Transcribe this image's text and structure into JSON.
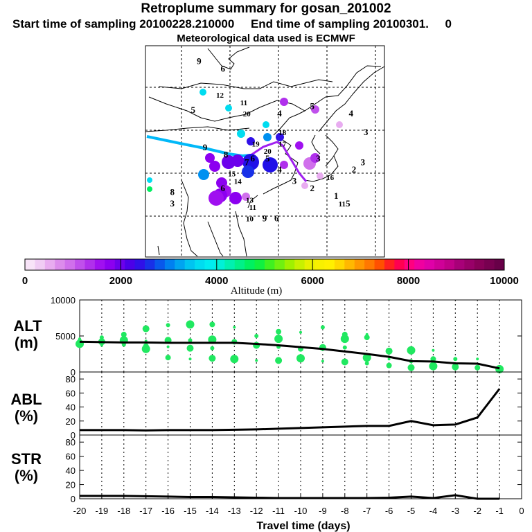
{
  "header": {
    "title": "Retroplume summary for gosan_201002",
    "sampling": "Start time of sampling 20100228.210000     End time of sampling 20100301.     0",
    "met": "Meteorological data used is ECMWF"
  },
  "colorbar": {
    "label": "Altitude (m)",
    "ticks": [
      "0",
      "2000",
      "4000",
      "6000",
      "8000",
      "10000"
    ],
    "min": 0,
    "max": 10000,
    "colors": [
      "#f8e4f8",
      "#f0ccf4",
      "#e8acf0",
      "#dc8cec",
      "#d070ec",
      "#c050ec",
      "#b030ec",
      "#a010f0",
      "#8c00f0",
      "#6c00ec",
      "#4c00e8",
      "#3010e8",
      "#1830e8",
      "#0858ec",
      "#0080f0",
      "#00a4f0",
      "#00c4f0",
      "#00dcf0",
      "#00ecf0",
      "#00f0d8",
      "#00f0b0",
      "#00f088",
      "#00f060",
      "#10f040",
      "#40f020",
      "#70f010",
      "#a0f000",
      "#c8f000",
      "#e8f000",
      "#f8f000",
      "#fff000",
      "#ffd800",
      "#ffb800",
      "#ff9800",
      "#ff7800",
      "#ff5000",
      "#ff2020",
      "#ff0050",
      "#ff0080",
      "#f000a0",
      "#e000a8",
      "#d00098",
      "#c00088",
      "#a80078",
      "#980068",
      "#880058",
      "#780050",
      "#680048"
    ]
  },
  "map": {
    "labels": [
      {
        "text": "9",
        "lon": 80,
        "lat": 45
      },
      {
        "text": "8",
        "lon": 87,
        "lat": 43
      },
      {
        "text": "7",
        "lon": 94,
        "lat": 41
      },
      {
        "text": "6",
        "lon": 96,
        "lat": 42
      },
      {
        "text": "5",
        "lon": 101,
        "lat": 42
      },
      {
        "text": "4",
        "lon": 105,
        "lat": 39
      },
      {
        "text": "3",
        "lon": 110,
        "lat": 36
      },
      {
        "text": "2",
        "lon": 116,
        "lat": 34
      },
      {
        "text": "1",
        "lon": 124,
        "lat": 32
      },
      {
        "text": "3",
        "lon": 118,
        "lat": 42
      },
      {
        "text": "16",
        "lon": 122,
        "lat": 37
      },
      {
        "text": "11",
        "lon": 126,
        "lat": 30
      },
      {
        "text": "5",
        "lon": 128,
        "lat": 30
      },
      {
        "text": "2",
        "lon": 130,
        "lat": 39
      },
      {
        "text": "3",
        "lon": 133,
        "lat": 41
      },
      {
        "text": "3",
        "lon": 134,
        "lat": 49
      },
      {
        "text": "4",
        "lon": 129,
        "lat": 54
      },
      {
        "text": "5",
        "lon": 116,
        "lat": 56
      },
      {
        "text": "4",
        "lon": 105,
        "lat": 54
      },
      {
        "text": "20",
        "lon": 94,
        "lat": 54
      },
      {
        "text": "11",
        "lon": 93,
        "lat": 57
      },
      {
        "text": "12",
        "lon": 85,
        "lat": 59
      },
      {
        "text": "5",
        "lon": 76,
        "lat": 55
      },
      {
        "text": "6",
        "lon": 86,
        "lat": 66
      },
      {
        "text": "9",
        "lon": 78,
        "lat": 68
      },
      {
        "text": "18",
        "lon": 106,
        "lat": 49
      },
      {
        "text": "19",
        "lon": 97,
        "lat": 46
      },
      {
        "text": "17",
        "lon": 106,
        "lat": 46
      },
      {
        "text": "20",
        "lon": 101,
        "lat": 44
      },
      {
        "text": "15",
        "lon": 89,
        "lat": 38
      },
      {
        "text": "14",
        "lon": 91,
        "lat": 36
      },
      {
        "text": "6",
        "lon": 86,
        "lat": 34
      },
      {
        "text": "13",
        "lon": 95,
        "lat": 31
      },
      {
        "text": "11",
        "lon": 96,
        "lat": 29
      },
      {
        "text": "10",
        "lon": 95,
        "lat": 26
      },
      {
        "text": "9",
        "lon": 100,
        "lat": 26
      },
      {
        "text": "6",
        "lon": 104,
        "lat": 26
      },
      {
        "text": "8",
        "lon": 69,
        "lat": 33
      },
      {
        "text": "3",
        "lon": 69,
        "lat": 30
      }
    ]
  },
  "chart_data": [
    {
      "type": "scatter",
      "panel": "ALT",
      "ylabel": "ALT (m)",
      "xlim": [
        -20,
        0
      ],
      "ylim": [
        0,
        10000
      ],
      "yticks": [
        "10000",
        "5000",
        "0"
      ],
      "line": {
        "x": [
          -20,
          -19,
          -18,
          -17,
          -16,
          -15,
          -14,
          -13,
          -12,
          -11,
          -10,
          -9,
          -8,
          -7,
          -6,
          -5,
          -4,
          -3,
          -2,
          -1
        ],
        "y": [
          4200,
          4150,
          4100,
          4100,
          4050,
          4050,
          4050,
          4050,
          3900,
          3700,
          3450,
          3200,
          2850,
          2500,
          2100,
          1500,
          1450,
          1200,
          1150,
          500
        ]
      },
      "points": [
        [
          -20,
          4600
        ],
        [
          -20,
          4200
        ],
        [
          -20,
          3900
        ],
        [
          -19,
          4800
        ],
        [
          -19,
          4200
        ],
        [
          -19,
          3700
        ],
        [
          -18,
          5200
        ],
        [
          -18,
          4400
        ],
        [
          -18,
          3800
        ],
        [
          -17,
          6000
        ],
        [
          -17,
          4300
        ],
        [
          -17,
          3600
        ],
        [
          -17,
          3200
        ],
        [
          -16,
          6500
        ],
        [
          -16,
          4400
        ],
        [
          -16,
          3500
        ],
        [
          -16,
          2000
        ],
        [
          -15,
          6600
        ],
        [
          -15,
          4400
        ],
        [
          -15,
          3300
        ],
        [
          -15,
          1800
        ],
        [
          -14,
          6600
        ],
        [
          -14,
          4500
        ],
        [
          -14,
          3300
        ],
        [
          -14,
          1900
        ],
        [
          -13,
          6200
        ],
        [
          -13,
          4200
        ],
        [
          -13,
          1800
        ],
        [
          -12,
          5000
        ],
        [
          -12,
          3700
        ],
        [
          -12,
          1600
        ],
        [
          -11,
          5600
        ],
        [
          -11,
          4600
        ],
        [
          -11,
          3500
        ],
        [
          -11,
          1600
        ],
        [
          -10,
          5500
        ],
        [
          -10,
          3200
        ],
        [
          -10,
          1900
        ],
        [
          -9,
          6200
        ],
        [
          -9,
          3400
        ],
        [
          -9,
          1500
        ],
        [
          -8,
          5200
        ],
        [
          -8,
          4600
        ],
        [
          -8,
          3400
        ],
        [
          -8,
          1400
        ],
        [
          -7,
          5200
        ],
        [
          -7,
          4800
        ],
        [
          -7,
          2000
        ],
        [
          -7,
          1200
        ],
        [
          -6,
          2900
        ],
        [
          -6,
          1800
        ],
        [
          -6,
          900
        ],
        [
          -5,
          3000
        ],
        [
          -5,
          1500
        ],
        [
          -5,
          600
        ],
        [
          -4,
          3000
        ],
        [
          -4,
          1800
        ],
        [
          -4,
          800
        ],
        [
          -3,
          1800
        ],
        [
          -3,
          700
        ],
        [
          -2,
          1800
        ],
        [
          -2,
          600
        ],
        [
          -1,
          400
        ]
      ]
    },
    {
      "type": "line",
      "panel": "ABL",
      "ylabel": "ABL (%)",
      "xlim": [
        -20,
        0
      ],
      "ylim": [
        0,
        90
      ],
      "yticks": [
        "80",
        "60",
        "40",
        "20",
        "0"
      ],
      "x": [
        -20,
        -19,
        -18,
        -17,
        -16,
        -15,
        -14,
        -13,
        -12,
        -11,
        -10,
        -9,
        -8,
        -7,
        -6,
        -5,
        -4,
        -3,
        -2,
        -1
      ],
      "values": [
        7,
        7,
        7,
        6.5,
        7,
        7,
        7,
        7.5,
        8,
        9,
        10,
        11,
        12,
        13,
        13,
        20,
        14,
        15,
        25,
        66
      ]
    },
    {
      "type": "line",
      "panel": "STR",
      "ylabel": "STR (%)",
      "xlim": [
        -20,
        0
      ],
      "ylim": [
        0,
        90
      ],
      "yticks": [
        "80",
        "60",
        "40",
        "20",
        "0"
      ],
      "xlabel": "Travel time (days)",
      "xticks": [
        "-20",
        "-19",
        "-18",
        "-17",
        "-16",
        "-15",
        "-14",
        "-13",
        "-12",
        "-11",
        "-10",
        "-9",
        "-8",
        "-7",
        "-6",
        "-5",
        "-4",
        "-3",
        "-2",
        "-1",
        "0"
      ],
      "x": [
        -20,
        -19,
        -18,
        -17,
        -16,
        -15,
        -14,
        -13,
        -12,
        -11,
        -10,
        -9,
        -8,
        -7,
        -6,
        -5,
        -4,
        -3,
        -2,
        -1
      ],
      "values": [
        4,
        4,
        4,
        3.5,
        3,
        2.5,
        2.5,
        2,
        1.5,
        1,
        1,
        1,
        1,
        1,
        1.5,
        3,
        1,
        5,
        0,
        0
      ]
    }
  ]
}
